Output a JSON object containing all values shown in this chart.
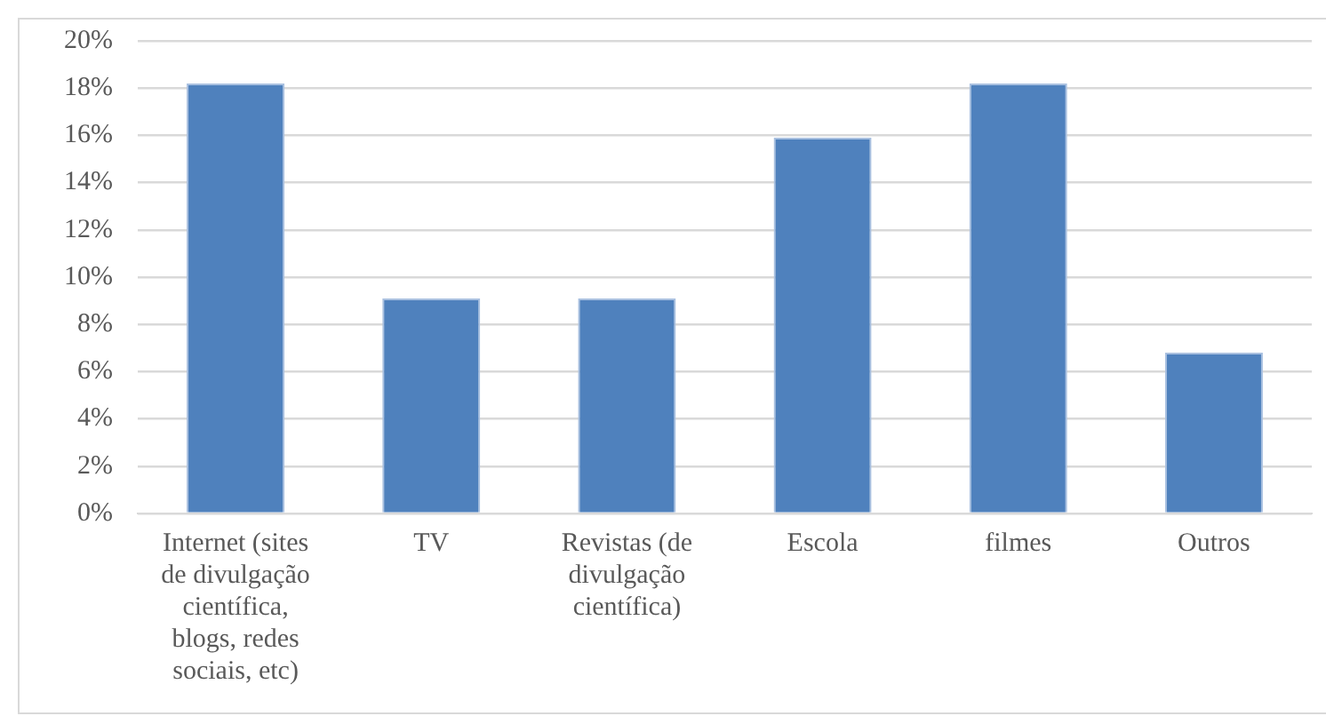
{
  "chart_data": {
    "type": "bar",
    "categories": [
      "Internet (sites de divulgação científica, blogs, redes sociais, etc)",
      "TV",
      "Revistas (de divulgação científica)",
      "Escola",
      "filmes",
      "Outros"
    ],
    "values": [
      18.2,
      9.1,
      9.1,
      15.9,
      18.2,
      6.8
    ],
    "color": "#4f81bd",
    "ylim": [
      0,
      20
    ],
    "yticks": [
      {
        "value": 0,
        "label": "0%"
      },
      {
        "value": 2,
        "label": "2%"
      },
      {
        "value": 4,
        "label": "4%"
      },
      {
        "value": 6,
        "label": "6%"
      },
      {
        "value": 8,
        "label": "8%"
      },
      {
        "value": 10,
        "label": "10%"
      },
      {
        "value": 12,
        "label": "12%"
      },
      {
        "value": 14,
        "label": "14%"
      },
      {
        "value": 16,
        "label": "16%"
      },
      {
        "value": 18,
        "label": "18%"
      },
      {
        "value": 20,
        "label": "20%"
      }
    ],
    "grid": "y",
    "legend": false
  }
}
